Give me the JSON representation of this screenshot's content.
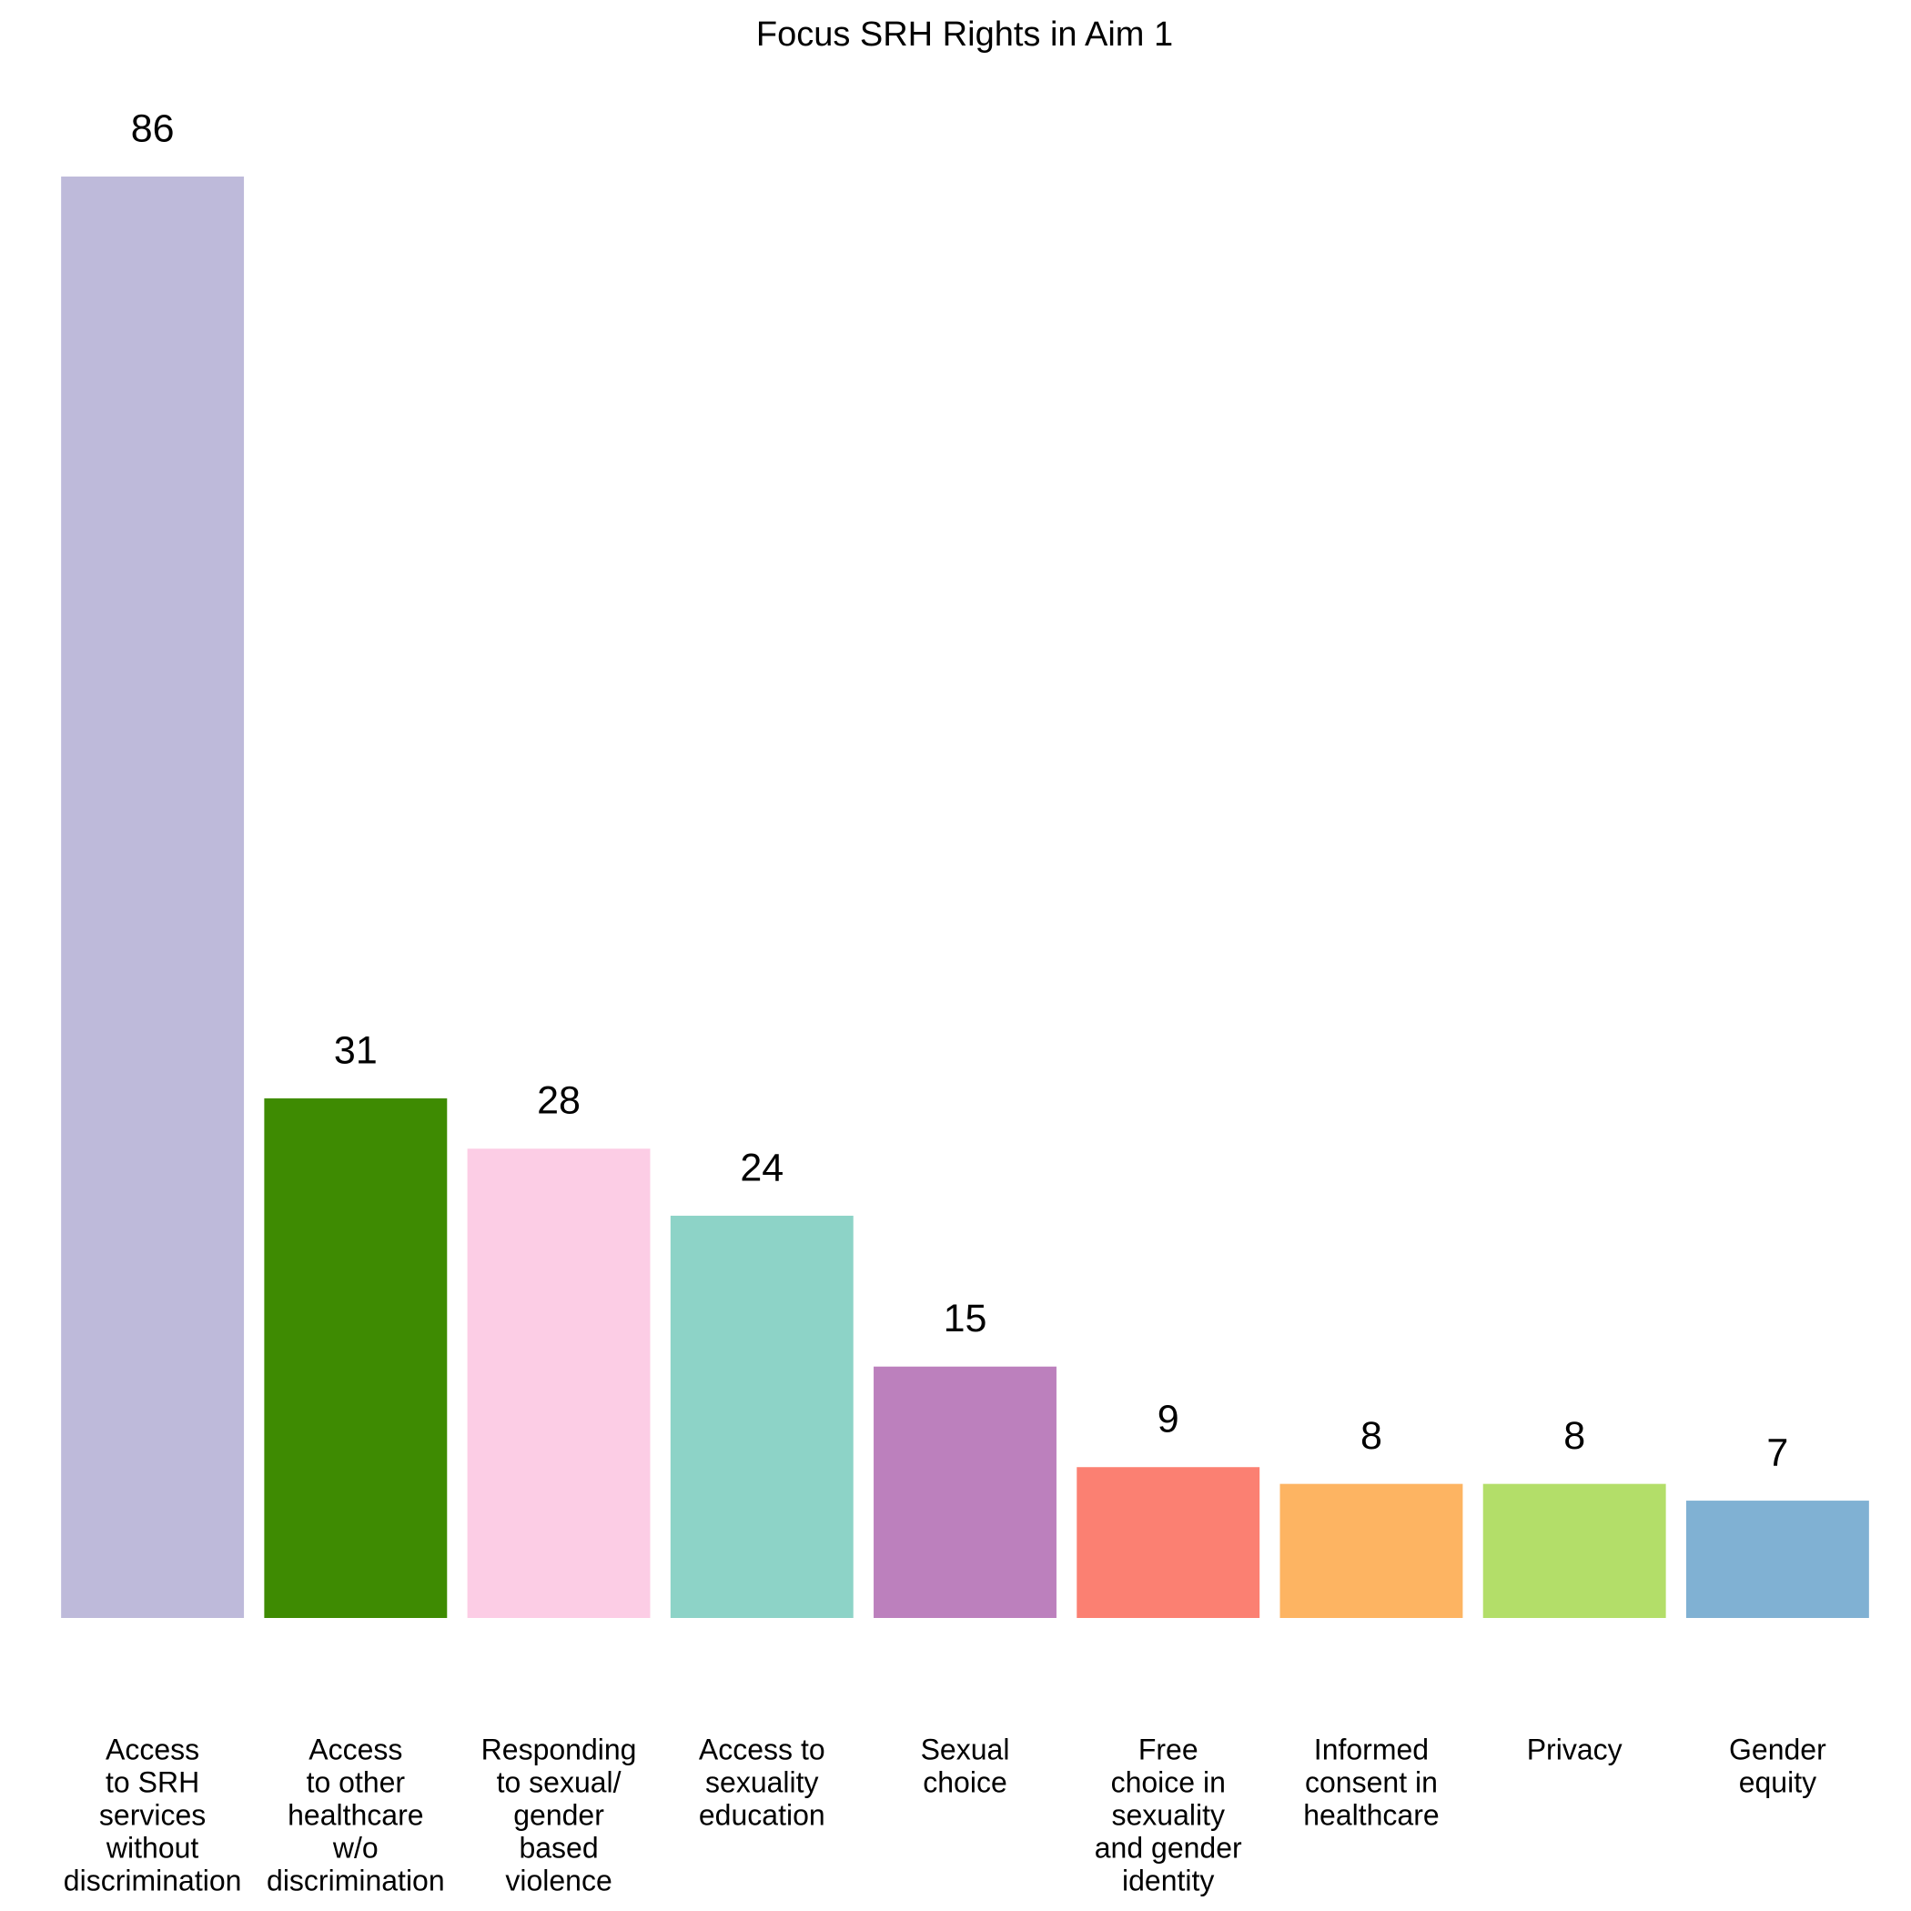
{
  "chart_data": {
    "type": "bar",
    "title": "Focus SRH Rights in Aim 1",
    "categories": [
      "Access\nto SRH\nservices\nwithout\ndiscrimination",
      "Access\nto other\nhealthcare\nw/o\ndiscrimination",
      "Responding\nto sexual/\ngender\nbased\nviolence",
      "Access to\nsexuality\neducation",
      "Sexual\nchoice",
      "Free\nchoice in\nsexuality\nand gender\nidentity",
      "Informed\nconsent in\nhealthcare",
      "Privacy",
      "Gender\nequity"
    ],
    "values": [
      86,
      31,
      28,
      24,
      15,
      9,
      8,
      8,
      7
    ],
    "colors": [
      "#bebada",
      "#3e8b02",
      "#fccde5",
      "#8dd3c7",
      "#bc80bd",
      "#fb8072",
      "#fdb462",
      "#b3de69",
      "#80b1d3"
    ]
  }
}
